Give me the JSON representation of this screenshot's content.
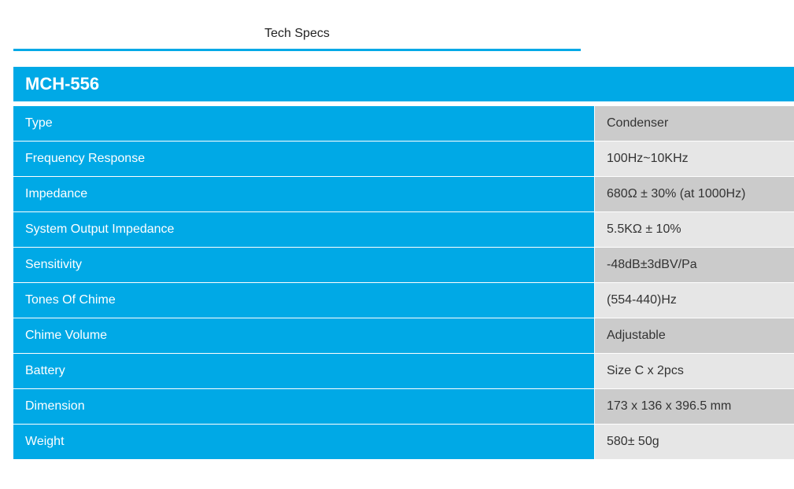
{
  "tabs": {
    "active_label": "Tech Specs"
  },
  "product": {
    "model": "MCH-556"
  },
  "specs": [
    {
      "label": "Type",
      "value": "Condenser"
    },
    {
      "label": "Frequency Response",
      "value": "100Hz~10KHz"
    },
    {
      "label": "Impedance",
      "value": "680Ω ± 30% (at 1000Hz)"
    },
    {
      "label": "System Output Impedance",
      "value": "5.5KΩ ± 10%"
    },
    {
      "label": "Sensitivity",
      "value": "-48dB±3dBV/Pa"
    },
    {
      "label": "Tones Of Chime",
      "value": "(554-440)Hz"
    },
    {
      "label": "Chime Volume",
      "value": "Adjustable"
    },
    {
      "label": "Battery",
      "value": "Size C x 2pcs"
    },
    {
      "label": "Dimension",
      "value": "173 x 136 x 396.5 mm"
    },
    {
      "label": "Weight",
      "value": "580± 50g"
    }
  ],
  "colors": {
    "accent": "#00a9e6",
    "value_dark": "#cbcbcb",
    "value_light": "#e6e6e6"
  }
}
